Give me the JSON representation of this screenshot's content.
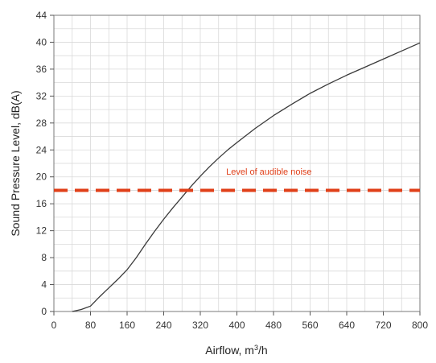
{
  "chart_data": {
    "type": "line",
    "title": "",
    "xlabel": "Airflow, m",
    "xlabel_sup": "3",
    "xlabel_suffix": "/h",
    "ylabel": "Sound Pressure Level, dB(A)",
    "xlim": [
      0,
      800
    ],
    "ylim": [
      0,
      44
    ],
    "xticks": [
      0,
      80,
      160,
      240,
      320,
      400,
      480,
      560,
      640,
      720,
      800
    ],
    "yticks": [
      0,
      4,
      8,
      12,
      16,
      20,
      24,
      28,
      32,
      36,
      40,
      44
    ],
    "x_minor_step": 40,
    "y_minor_step": 2,
    "grid": true,
    "series": [
      {
        "color": "#3a3a3a",
        "x": [
          40,
          60,
          80,
          100,
          120,
          140,
          160,
          180,
          200,
          220,
          240,
          260,
          280,
          300,
          320,
          340,
          360,
          380,
          400,
          440,
          480,
          520,
          560,
          600,
          640,
          680,
          720,
          760,
          800
        ],
        "y": [
          0,
          0.3,
          0.8,
          2.2,
          3.5,
          4.8,
          6.2,
          8.0,
          10.0,
          11.9,
          13.7,
          15.4,
          17.0,
          18.6,
          20.1,
          21.5,
          22.8,
          24.0,
          25.1,
          27.2,
          29.1,
          30.8,
          32.4,
          33.8,
          35.1,
          36.3,
          37.5,
          38.7,
          39.9
        ]
      }
    ],
    "reference_line": {
      "y": 18,
      "color": "#e0401a",
      "style": "dashed",
      "label": "Level of audible noise",
      "label_at_x": 470,
      "label_at_y": 20.3
    }
  }
}
